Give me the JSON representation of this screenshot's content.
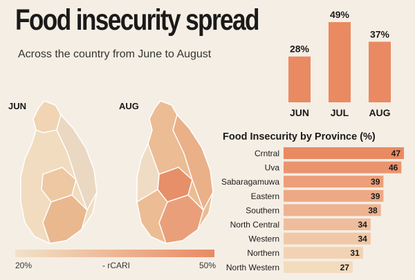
{
  "header": {
    "title": "Food insecurity spread",
    "subtitle": "Across the country from June to August"
  },
  "maps": {
    "left_label": "JUN",
    "right_label": "AUG"
  },
  "legend": {
    "min_label": "20%",
    "mid_label": "- rCARI",
    "max_label": "50%",
    "color_low": "#f1e2c8",
    "color_high": "#e98a62"
  },
  "colors": {
    "bar": "#e98a62",
    "background": "#f5eee4",
    "map_border": "#ffffff"
  },
  "chart_data": [
    {
      "type": "bar",
      "categories": [
        "JUN",
        "JUL",
        "AUG"
      ],
      "values": [
        28,
        49,
        37
      ],
      "value_labels": [
        "28%",
        "49%",
        "37%"
      ],
      "ylim": [
        0,
        49
      ]
    },
    {
      "type": "bar",
      "orientation": "horizontal",
      "title": "Food Insecurity by Province (%)",
      "categories": [
        "Crntral",
        "Uva",
        "Sabaragamuwa",
        "Eastern",
        "Southern",
        "North Central",
        "Western",
        "Northern",
        "North Western"
      ],
      "values": [
        47,
        46,
        39,
        39,
        38,
        34,
        34,
        31,
        27
      ],
      "xlim": [
        0,
        47
      ]
    }
  ]
}
